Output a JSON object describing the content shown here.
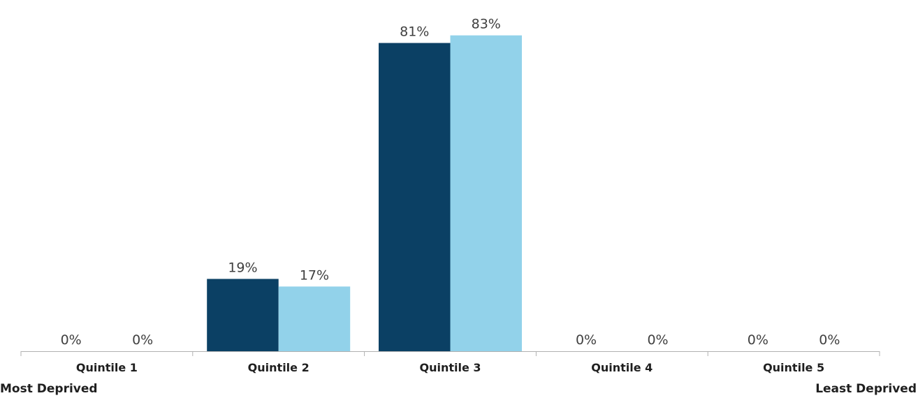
{
  "chart_data": {
    "type": "bar",
    "categories": [
      "Quintile 1",
      "Quintile 2",
      "Quintile 3",
      "Quintile 4",
      "Quintile 5"
    ],
    "series": [
      {
        "values": [
          0,
          19,
          81,
          0,
          0
        ],
        "labels": [
          "0%",
          "19%",
          "81%",
          "0%",
          "0%"
        ],
        "color": "#0b4064"
      },
      {
        "values": [
          0,
          17,
          83,
          0,
          0
        ],
        "labels": [
          "0%",
          "17%",
          "83%",
          "0%",
          "0%"
        ],
        "color": "#92d2ea"
      }
    ],
    "ylim": [
      0,
      90
    ],
    "grid": false,
    "title": "",
    "xlabel": "",
    "ylabel": ""
  },
  "annotations": {
    "left": "Most Deprived",
    "right": "Least Deprived"
  }
}
